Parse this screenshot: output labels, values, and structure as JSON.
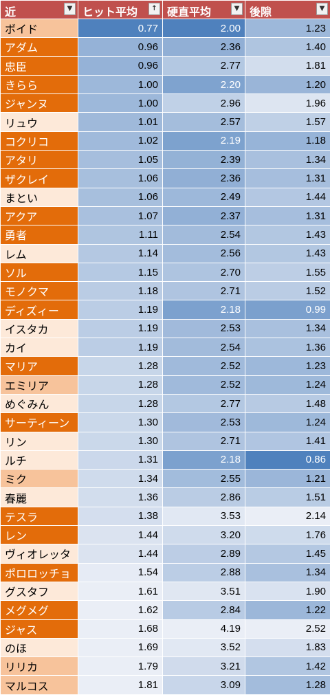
{
  "headers": [
    {
      "label": "近",
      "filter": "▼"
    },
    {
      "label": "ヒット平均",
      "filter": "↑"
    },
    {
      "label": "硬直平均",
      "filter": "▼"
    },
    {
      "label": "後隙",
      "filter": "▼"
    }
  ],
  "rows": [
    {
      "name": "ボイド",
      "hit": "0.77",
      "stun": "2.00",
      "recovery": "1.23"
    },
    {
      "name": "アダム",
      "hit": "0.96",
      "stun": "2.36",
      "recovery": "1.40"
    },
    {
      "name": "忠臣",
      "hit": "0.96",
      "stun": "2.77",
      "recovery": "1.81"
    },
    {
      "name": "きらら",
      "hit": "1.00",
      "stun": "2.20",
      "recovery": "1.20"
    },
    {
      "name": "ジャンヌ",
      "hit": "1.00",
      "stun": "2.96",
      "recovery": "1.96"
    },
    {
      "name": "リュウ",
      "hit": "1.01",
      "stun": "2.57",
      "recovery": "1.57"
    },
    {
      "name": "コクリコ",
      "hit": "1.02",
      "stun": "2.19",
      "recovery": "1.18"
    },
    {
      "name": "アタリ",
      "hit": "1.05",
      "stun": "2.39",
      "recovery": "1.34"
    },
    {
      "name": "ザクレイ",
      "hit": "1.06",
      "stun": "2.36",
      "recovery": "1.31"
    },
    {
      "name": "まとい",
      "hit": "1.06",
      "stun": "2.49",
      "recovery": "1.44"
    },
    {
      "name": "アクア",
      "hit": "1.07",
      "stun": "2.37",
      "recovery": "1.31"
    },
    {
      "name": "勇者",
      "hit": "1.11",
      "stun": "2.54",
      "recovery": "1.43"
    },
    {
      "name": "レム",
      "hit": "1.14",
      "stun": "2.56",
      "recovery": "1.43"
    },
    {
      "name": "ソル",
      "hit": "1.15",
      "stun": "2.70",
      "recovery": "1.55"
    },
    {
      "name": "モノクマ",
      "hit": "1.18",
      "stun": "2.71",
      "recovery": "1.52"
    },
    {
      "name": "ディズィー",
      "hit": "1.19",
      "stun": "2.18",
      "recovery": "0.99"
    },
    {
      "name": "イスタカ",
      "hit": "1.19",
      "stun": "2.53",
      "recovery": "1.34"
    },
    {
      "name": "カイ",
      "hit": "1.19",
      "stun": "2.54",
      "recovery": "1.36"
    },
    {
      "name": "マリア",
      "hit": "1.28",
      "stun": "2.52",
      "recovery": "1.23"
    },
    {
      "name": "エミリア",
      "hit": "1.28",
      "stun": "2.52",
      "recovery": "1.24"
    },
    {
      "name": "めぐみん",
      "hit": "1.28",
      "stun": "2.77",
      "recovery": "1.48"
    },
    {
      "name": "サーティーン",
      "hit": "1.30",
      "stun": "2.53",
      "recovery": "1.24"
    },
    {
      "name": "リン",
      "hit": "1.30",
      "stun": "2.71",
      "recovery": "1.41"
    },
    {
      "name": "ルチ",
      "hit": "1.31",
      "stun": "2.18",
      "recovery": "0.86"
    },
    {
      "name": "ミク",
      "hit": "1.34",
      "stun": "2.55",
      "recovery": "1.21"
    },
    {
      "name": "春麗",
      "hit": "1.36",
      "stun": "2.86",
      "recovery": "1.51"
    },
    {
      "name": "テスラ",
      "hit": "1.38",
      "stun": "3.53",
      "recovery": "2.14"
    },
    {
      "name": "レン",
      "hit": "1.44",
      "stun": "3.20",
      "recovery": "1.76"
    },
    {
      "name": "ヴィオレッタ",
      "hit": "1.44",
      "stun": "2.89",
      "recovery": "1.45"
    },
    {
      "name": "ポロロッチョ",
      "hit": "1.54",
      "stun": "2.88",
      "recovery": "1.34"
    },
    {
      "name": "グスタフ",
      "hit": "1.61",
      "stun": "3.51",
      "recovery": "1.90"
    },
    {
      "name": "メグメグ",
      "hit": "1.62",
      "stun": "2.84",
      "recovery": "1.22"
    },
    {
      "name": "ジャス",
      "hit": "1.68",
      "stun": "4.19",
      "recovery": "2.52"
    },
    {
      "name": "のほ",
      "hit": "1.69",
      "stun": "3.52",
      "recovery": "1.83"
    },
    {
      "name": "リリカ",
      "hit": "1.79",
      "stun": "3.21",
      "recovery": "1.42"
    },
    {
      "name": "マルコス",
      "hit": "1.81",
      "stun": "3.09",
      "recovery": "1.28"
    }
  ],
  "colors": {
    "header_bg": "#c0504d",
    "name_dark_orange": "#e36c0a",
    "name_mid_orange": "#f7c39b",
    "name_light_orange": "#fde9d9",
    "scale_low_blue": "#4f81bd",
    "scale_high_light": "#f2f2f2"
  }
}
